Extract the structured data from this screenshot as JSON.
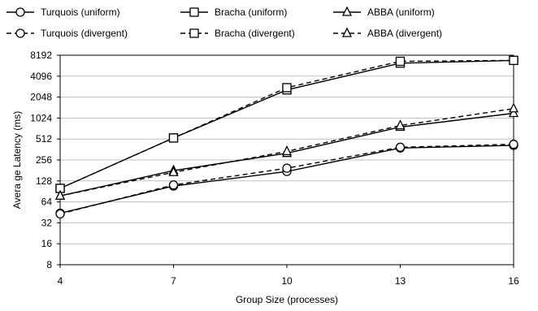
{
  "chart_data": {
    "type": "line",
    "title": "",
    "xlabel": "Group Size (processes)",
    "ylabel": "Avera ge Latency (ms)",
    "x": [
      4,
      7,
      10,
      13,
      16
    ],
    "x_ticks": [
      "4",
      "7",
      "10",
      "13",
      "16"
    ],
    "y_scale": "log2",
    "ylim": [
      8,
      8192
    ],
    "y_ticks": [
      "8",
      "16",
      "32",
      "64",
      "128",
      "256",
      "512",
      "1024",
      "2048",
      "4096",
      "8192"
    ],
    "grid": "horizontal",
    "legend_position": "top",
    "series": [
      {
        "name": "Turquois (uniform)",
        "marker": "circle",
        "dash": "solid",
        "values": [
          44,
          108,
          175,
          380,
          415
        ]
      },
      {
        "name": "Bracha (uniform)",
        "marker": "square",
        "dash": "solid",
        "values": [
          100,
          530,
          2600,
          6300,
          6900
        ]
      },
      {
        "name": "ABBA (uniform)",
        "marker": "triangle",
        "dash": "solid",
        "values": [
          78,
          180,
          320,
          760,
          1200
        ]
      },
      {
        "name": "Turquois (divergent)",
        "marker": "circle",
        "dash": "dashed",
        "values": [
          43,
          112,
          195,
          390,
          430
        ]
      },
      {
        "name": "Bracha (divergent)",
        "marker": "square",
        "dash": "dashed",
        "values": [
          100,
          530,
          2800,
          6700,
          6900
        ]
      },
      {
        "name": "ABBA (divergent)",
        "marker": "triangle",
        "dash": "dashed",
        "values": [
          78,
          170,
          340,
          800,
          1400
        ]
      }
    ]
  }
}
